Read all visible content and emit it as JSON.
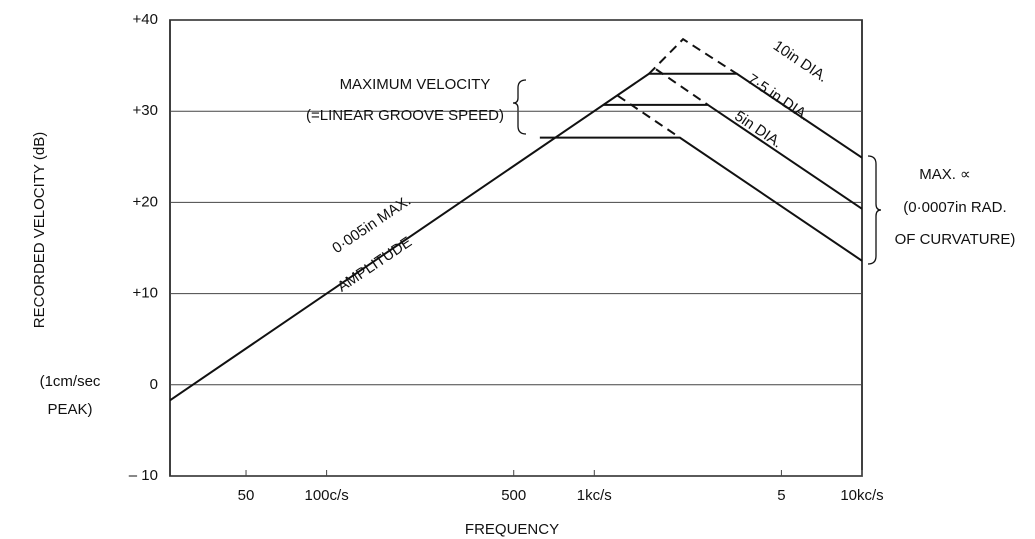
{
  "chart_data": {
    "type": "line",
    "xlabel": "FREQUENCY",
    "ylabel": "RECORDED VELOCITY (dB)",
    "log_x": true,
    "grid": true,
    "xlim": [
      26,
      10000
    ],
    "ylim": [
      -10,
      40
    ],
    "xticks": [
      50,
      {
        "value": 100,
        "label": "100c/s"
      },
      500,
      {
        "value": 1000,
        "label": "1kc/s"
      },
      {
        "value": 5000,
        "label": "5"
      },
      {
        "value": 10000,
        "label": "10kc/s"
      }
    ],
    "yticks": [
      {
        "value": 40,
        "label": "+40"
      },
      {
        "value": 30,
        "label": "+30"
      },
      {
        "value": 20,
        "label": "+20"
      },
      {
        "value": 10,
        "label": "+10"
      },
      0,
      {
        "value": -10,
        "label": "– 10"
      }
    ],
    "series": [
      {
        "color": "#111111",
        "dashed": false,
        "x": [
          26,
          1600,
          3410,
          10000
        ],
        "values": [
          -1.7,
          34.1,
          34.1,
          24.9
        ]
      },
      {
        "color": "#111111",
        "dashed": false,
        "x": [
          1083,
          2656,
          10000
        ],
        "values": [
          30.7,
          30.7,
          19.3
        ]
      },
      {
        "color": "#111111",
        "dashed": false,
        "x": [
          626,
          2088,
          10000
        ],
        "values": [
          27.1,
          27.1,
          13.6
        ]
      },
      {
        "color": "#111111",
        "dashed": true,
        "x": [
          1600,
          2146,
          3410
        ],
        "values": [
          34.1,
          37.9,
          34.1
        ]
      },
      {
        "color": "#111111",
        "dashed": true,
        "x": [
          1700,
          2656
        ],
        "values": [
          34.6,
          30.7
        ]
      },
      {
        "color": "#111111",
        "dashed": true,
        "x": [
          1223,
          2088
        ],
        "values": [
          31.7,
          27.1
        ]
      }
    ],
    "annotations": [
      "MAXIMUM VELOCITY",
      "(=LINEAR GROOVE SPEED)",
      "10in DIA.",
      "7·5 in DIA.",
      "5in DIA.",
      "MAX. ∝",
      "(0·0007in RAD.",
      "OF CURVATURE)",
      "0·005in MAX.",
      "AMPLITUDE",
      "(1cm/sec",
      "PEAK)"
    ]
  }
}
